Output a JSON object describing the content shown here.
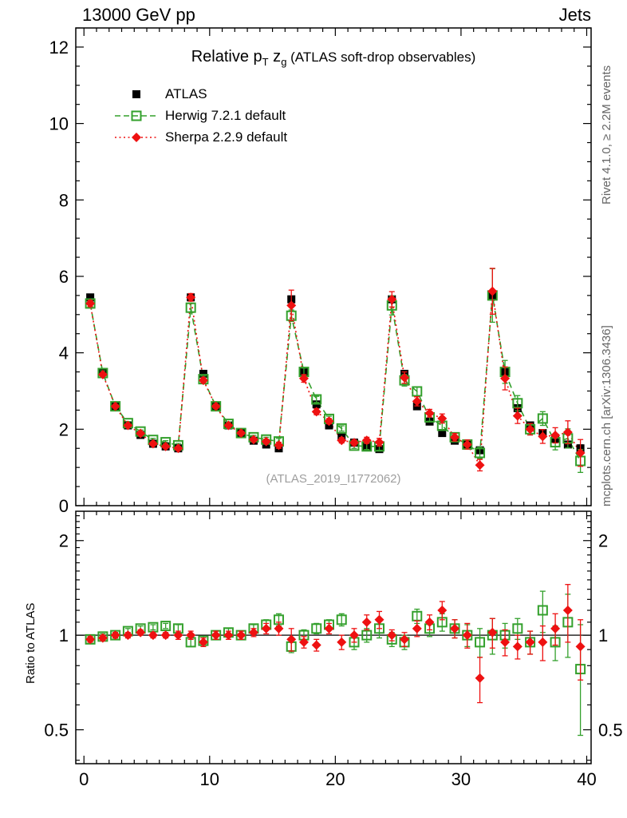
{
  "header": {
    "left": "13000 GeV pp",
    "right": "Jets"
  },
  "title": {
    "pre": "Relative p",
    "sub1": "T",
    "mid": " z",
    "sub2": "g",
    "post": " (ATLAS soft-drop observables)"
  },
  "watermark": "(ATLAS_2019_I1772062)",
  "side_labels": {
    "rivet": "Rivet 4.1.0, ≥ 2.2M events",
    "mcplots": "mcplots.cern.ch [arXiv:1306.3436]"
  },
  "chart_data": {
    "type": "scatter",
    "title": "Relative pT zg (ATLAS soft-drop observables)",
    "xlabel": "",
    "ylabel": "",
    "ratio_ylabel": "Ratio to ATLAS",
    "x_range": [
      -0.65,
      40.35
    ],
    "y_range": [
      0,
      12.5
    ],
    "ratio_range": [
      0.39,
      2.48
    ],
    "ratio_scale": "log",
    "x_ticks": [
      0,
      10,
      20,
      30,
      40
    ],
    "x_minor_step": 1,
    "y_ticks": [
      0,
      2,
      4,
      6,
      8,
      10,
      12
    ],
    "y_minor_step": 0.5,
    "ratio_ticks": [
      0.5,
      1,
      2
    ],
    "x": [
      0.5,
      1.5,
      2.5,
      3.5,
      4.5,
      5.5,
      6.5,
      7.5,
      8.5,
      9.5,
      10.5,
      11.5,
      12.5,
      13.5,
      14.5,
      15.5,
      16.5,
      17.5,
      18.5,
      19.5,
      20.5,
      21.5,
      22.5,
      23.5,
      24.5,
      25.5,
      26.5,
      27.5,
      28.5,
      29.5,
      30.5,
      31.5,
      32.5,
      33.5,
      34.5,
      35.5,
      36.5,
      37.5,
      38.5,
      39.5
    ],
    "series": [
      {
        "id": "atlas",
        "label": "ATLAS",
        "color": "#000000",
        "marker": "square-filled",
        "line": "none",
        "values": [
          5.45,
          3.5,
          2.6,
          2.1,
          1.85,
          1.62,
          1.55,
          1.5,
          5.45,
          3.45,
          2.6,
          2.1,
          1.9,
          1.7,
          1.6,
          1.5,
          5.4,
          3.5,
          2.65,
          2.1,
          1.8,
          1.65,
          1.55,
          1.48,
          5.4,
          3.45,
          2.6,
          2.2,
          1.9,
          1.7,
          1.6,
          1.45,
          5.5,
          3.5,
          2.55,
          2.1,
          1.9,
          1.75,
          1.6,
          1.5
        ],
        "errors": [
          0.05,
          0.04,
          0.03,
          0.03,
          0.03,
          0.03,
          0.03,
          0.03,
          0.06,
          0.04,
          0.03,
          0.03,
          0.03,
          0.03,
          0.03,
          0.03,
          0.07,
          0.05,
          0.04,
          0.04,
          0.04,
          0.04,
          0.04,
          0.04,
          0.08,
          0.06,
          0.05,
          0.05,
          0.05,
          0.05,
          0.05,
          0.05,
          0.12,
          0.09,
          0.07,
          0.06,
          0.06,
          0.07,
          0.08,
          0.09
        ]
      },
      {
        "id": "herwig",
        "label": "Herwig 7.2.1 default",
        "color": "#33a02c",
        "marker": "square-open",
        "line": "dashed",
        "values": [
          5.29,
          3.47,
          2.6,
          2.16,
          1.94,
          1.72,
          1.66,
          1.58,
          5.18,
          3.31,
          2.6,
          2.14,
          1.9,
          1.79,
          1.73,
          1.68,
          4.97,
          3.5,
          2.78,
          2.27,
          2.02,
          1.57,
          1.55,
          1.55,
          5.24,
          3.28,
          2.99,
          2.31,
          2.09,
          1.79,
          1.6,
          1.38,
          5.5,
          3.5,
          2.68,
          2.0,
          2.28,
          1.66,
          1.76,
          1.17
        ],
        "errors": [
          0.1,
          0.06,
          0.05,
          0.04,
          0.04,
          0.04,
          0.04,
          0.05,
          0.12,
          0.08,
          0.06,
          0.05,
          0.05,
          0.05,
          0.06,
          0.08,
          0.15,
          0.1,
          0.08,
          0.07,
          0.07,
          0.07,
          0.08,
          0.1,
          0.25,
          0.15,
          0.12,
          0.1,
          0.1,
          0.1,
          0.12,
          0.15,
          0.7,
          0.3,
          0.2,
          0.15,
          0.18,
          0.2,
          0.25,
          0.3
        ],
        "ratio": [
          0.97,
          0.99,
          1.0,
          1.03,
          1.05,
          1.06,
          1.07,
          1.05,
          0.95,
          0.96,
          1.0,
          1.02,
          1.0,
          1.05,
          1.08,
          1.12,
          0.92,
          1.0,
          1.05,
          1.08,
          1.12,
          0.95,
          1.0,
          1.05,
          0.97,
          0.95,
          1.15,
          1.05,
          1.1,
          1.05,
          1.0,
          0.95,
          1.0,
          1.0,
          1.05,
          0.95,
          1.2,
          0.95,
          1.1,
          0.78
        ],
        "ratio_errors": [
          0.02,
          0.02,
          0.02,
          0.02,
          0.02,
          0.02,
          0.02,
          0.03,
          0.03,
          0.03,
          0.03,
          0.03,
          0.03,
          0.03,
          0.04,
          0.05,
          0.04,
          0.04,
          0.04,
          0.04,
          0.05,
          0.05,
          0.05,
          0.07,
          0.05,
          0.05,
          0.06,
          0.06,
          0.07,
          0.07,
          0.08,
          0.1,
          0.13,
          0.09,
          0.08,
          0.08,
          0.18,
          0.12,
          0.25,
          0.3
        ]
      },
      {
        "id": "sherpa",
        "label": "Sherpa 2.2.9 default",
        "color": "#ee1111",
        "marker": "diamond-filled",
        "line": "dotted",
        "values": [
          5.29,
          3.43,
          2.6,
          2.1,
          1.89,
          1.62,
          1.55,
          1.5,
          5.45,
          3.28,
          2.6,
          2.1,
          1.9,
          1.73,
          1.68,
          1.58,
          5.24,
          3.33,
          2.46,
          2.21,
          1.71,
          1.65,
          1.71,
          1.66,
          5.4,
          3.35,
          2.73,
          2.42,
          2.28,
          1.79,
          1.6,
          1.06,
          5.61,
          3.33,
          2.35,
          2.0,
          1.81,
          1.84,
          1.92,
          1.38
        ],
        "errors": [
          0.08,
          0.05,
          0.04,
          0.04,
          0.04,
          0.04,
          0.04,
          0.05,
          0.1,
          0.07,
          0.05,
          0.05,
          0.05,
          0.05,
          0.06,
          0.08,
          0.4,
          0.1,
          0.08,
          0.07,
          0.07,
          0.07,
          0.08,
          0.1,
          0.2,
          0.15,
          0.12,
          0.1,
          0.12,
          0.1,
          0.12,
          0.15,
          0.6,
          0.3,
          0.2,
          0.15,
          0.18,
          0.2,
          0.3,
          0.35
        ],
        "ratio": [
          0.97,
          0.98,
          1.0,
          1.0,
          1.02,
          1.0,
          1.0,
          1.0,
          1.0,
          0.95,
          1.0,
          1.0,
          1.0,
          1.02,
          1.05,
          1.05,
          0.97,
          0.95,
          0.93,
          1.05,
          0.95,
          1.0,
          1.1,
          1.12,
          1.0,
          0.97,
          1.05,
          1.1,
          1.2,
          1.05,
          1.0,
          0.73,
          1.02,
          0.95,
          0.92,
          0.95,
          0.95,
          1.05,
          1.2,
          0.92
        ],
        "ratio_errors": [
          0.02,
          0.02,
          0.02,
          0.02,
          0.02,
          0.02,
          0.02,
          0.03,
          0.03,
          0.03,
          0.03,
          0.03,
          0.03,
          0.03,
          0.04,
          0.05,
          0.08,
          0.04,
          0.04,
          0.04,
          0.05,
          0.05,
          0.06,
          0.07,
          0.04,
          0.05,
          0.06,
          0.06,
          0.08,
          0.07,
          0.09,
          0.12,
          0.11,
          0.09,
          0.08,
          0.08,
          0.12,
          0.12,
          0.25,
          0.2
        ]
      }
    ]
  }
}
